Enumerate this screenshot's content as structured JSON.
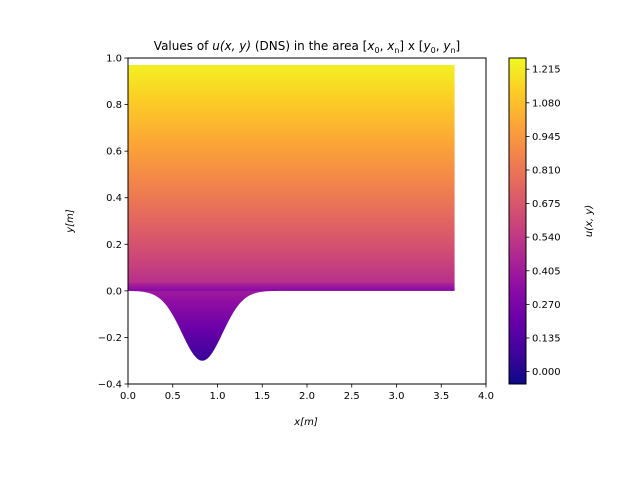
{
  "chart_data": {
    "type": "heatmap",
    "title": "Values of u(x, y) (DNS) in the area [x0, xn] x [y0, yn]",
    "title_parts": {
      "prefix": "Values of ",
      "func": "u",
      "args": "(x, y)",
      "mid": " (DNS) in the area [",
      "x0": "x",
      "x0_sub": "0",
      "xn": "x",
      "xn_sub": "n",
      "close1": "] x [",
      "y0": "y",
      "y0_sub": "0",
      "yn": "y",
      "yn_sub": "n",
      "close2": "]"
    },
    "xlabel": "x[m]",
    "ylabel": "y[m]",
    "xlim": [
      0.0,
      4.0
    ],
    "ylim": [
      -0.4,
      1.0
    ],
    "xticks": [
      "0.0",
      "0.5",
      "1.0",
      "1.5",
      "2.0",
      "2.5",
      "3.0",
      "3.5",
      "4.0"
    ],
    "yticks": [
      "−0.4",
      "−0.2",
      "0.0",
      "0.2",
      "0.4",
      "0.6",
      "0.8",
      "1.0"
    ],
    "domain": {
      "x_start": 0.0,
      "x_end": 3.65,
      "top_y": 0.97,
      "bump_center_x": 0.83,
      "bump_depth": -0.3,
      "bump_width": 0.32
    },
    "colorbar": {
      "label": "u(x, y)",
      "colormap": "plasma",
      "vmin": -0.05,
      "vmax": 1.26,
      "ticks": [
        "0.000",
        "0.135",
        "0.270",
        "0.405",
        "0.540",
        "0.675",
        "0.810",
        "0.945",
        "1.080",
        "1.215"
      ]
    }
  }
}
